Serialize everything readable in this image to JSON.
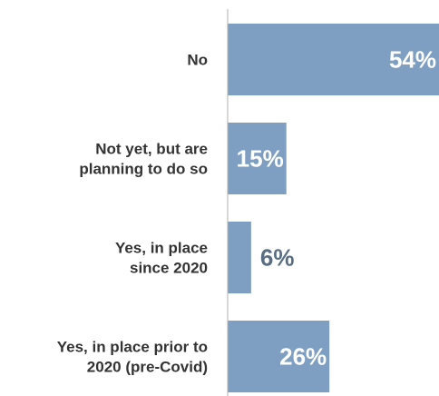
{
  "chart_data": {
    "type": "bar",
    "orientation": "horizontal",
    "categories": [
      [
        "No"
      ],
      [
        "Not yet, but are",
        "planning to do so"
      ],
      [
        "Yes, in place",
        "since 2020"
      ],
      [
        "Yes, in place prior to",
        "2020 (pre-Covid)"
      ]
    ],
    "values": [
      54,
      15,
      6,
      26
    ],
    "value_labels": [
      "54%",
      "15%",
      "6%",
      "26%"
    ],
    "xlim": [
      0,
      54
    ],
    "grid": false,
    "colors": {
      "bar": "#7f9fc2",
      "axis": "#b0b0b0",
      "label_inside": "#ffffff",
      "label_outside": "#5a6e83",
      "category_text": "#333333"
    }
  }
}
